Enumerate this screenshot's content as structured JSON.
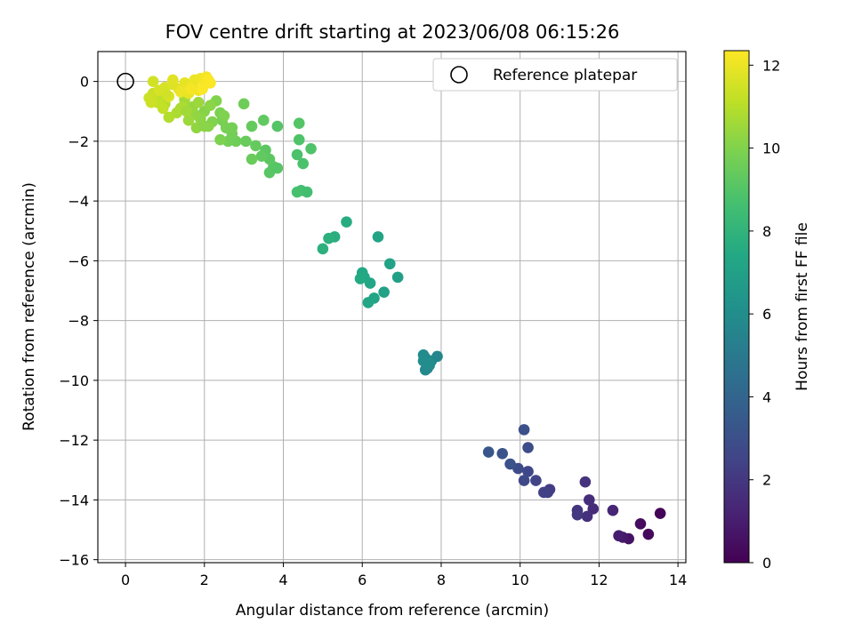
{
  "chart_data": {
    "type": "scatter",
    "title": "FOV centre drift starting at 2023/06/08 06:15:26",
    "xlabel": "Angular distance from reference (arcmin)",
    "ylabel": "Rotation from reference (arcmin)",
    "xlim": [
      -0.7,
      14.2
    ],
    "ylim": [
      -16.1,
      1.0
    ],
    "xticks": [
      0,
      2,
      4,
      6,
      8,
      10,
      12,
      14
    ],
    "yticks": [
      0,
      -2,
      -4,
      -6,
      -8,
      -10,
      -12,
      -14,
      -16
    ],
    "xtick_labels": [
      "0",
      "2",
      "4",
      "6",
      "8",
      "10",
      "12",
      "14"
    ],
    "ytick_labels": [
      "0",
      "−2",
      "−4",
      "−6",
      "−8",
      "−10",
      "−12",
      "−14",
      "−16"
    ],
    "grid": true,
    "legend": {
      "placement": "top-right",
      "entries": [
        "Reference platepar"
      ]
    },
    "reference_point": {
      "x": 0,
      "y": 0
    },
    "colorbar": {
      "label": "Hours from first FF file",
      "range": [
        0,
        12.35
      ],
      "ticks": [
        0,
        2,
        4,
        6,
        8,
        10,
        12
      ],
      "tick_labels": [
        "0",
        "2",
        "4",
        "6",
        "8",
        "10",
        "12"
      ],
      "colormap": "viridis"
    },
    "points": [
      [
        13.55,
        -14.45,
        0.1
      ],
      [
        13.25,
        -15.15,
        0.3
      ],
      [
        13.05,
        -14.8,
        0.4
      ],
      [
        12.75,
        -15.3,
        0.6
      ],
      [
        12.6,
        -15.25,
        0.8
      ],
      [
        12.5,
        -15.2,
        1.0
      ],
      [
        12.35,
        -14.35,
        1.3
      ],
      [
        11.85,
        -14.3,
        1.5
      ],
      [
        11.75,
        -14.0,
        1.6
      ],
      [
        11.7,
        -14.55,
        1.7
      ],
      [
        11.65,
        -13.4,
        1.8
      ],
      [
        11.45,
        -14.35,
        1.9
      ],
      [
        11.45,
        -14.5,
        2.0
      ],
      [
        10.75,
        -13.65,
        2.2
      ],
      [
        10.7,
        -13.75,
        2.3
      ],
      [
        10.6,
        -13.75,
        2.4
      ],
      [
        10.4,
        -13.35,
        2.5
      ],
      [
        10.2,
        -13.05,
        2.6
      ],
      [
        10.1,
        -13.35,
        2.7
      ],
      [
        9.95,
        -12.95,
        2.8
      ],
      [
        10.2,
        -12.25,
        2.9
      ],
      [
        10.1,
        -11.65,
        3.0
      ],
      [
        9.75,
        -12.8,
        3.1
      ],
      [
        9.55,
        -12.45,
        3.2
      ],
      [
        9.2,
        -12.4,
        3.3
      ],
      [
        7.9,
        -9.2,
        5.6
      ],
      [
        7.75,
        -9.35,
        5.7
      ],
      [
        7.7,
        -9.5,
        5.7
      ],
      [
        7.65,
        -9.6,
        5.8
      ],
      [
        7.6,
        -9.65,
        5.8
      ],
      [
        7.55,
        -9.15,
        5.9
      ],
      [
        7.6,
        -9.25,
        5.9
      ],
      [
        7.55,
        -9.35,
        6.0
      ],
      [
        7.7,
        -9.45,
        6.0
      ],
      [
        6.9,
        -6.55,
        7.0
      ],
      [
        6.7,
        -6.1,
        7.1
      ],
      [
        6.55,
        -7.05,
        7.1
      ],
      [
        6.4,
        -5.2,
        7.2
      ],
      [
        6.3,
        -7.25,
        7.2
      ],
      [
        6.2,
        -6.75,
        7.3
      ],
      [
        6.15,
        -7.4,
        7.3
      ],
      [
        6.05,
        -6.55,
        7.4
      ],
      [
        6.0,
        -6.4,
        7.4
      ],
      [
        5.95,
        -6.6,
        7.5
      ],
      [
        5.6,
        -4.7,
        7.6
      ],
      [
        5.3,
        -5.2,
        7.7
      ],
      [
        5.15,
        -5.25,
        7.8
      ],
      [
        5.0,
        -5.6,
        7.8
      ],
      [
        4.6,
        -3.7,
        8.6
      ],
      [
        4.45,
        -3.65,
        8.6
      ],
      [
        4.35,
        -3.7,
        8.7
      ],
      [
        4.35,
        -2.45,
        8.8
      ],
      [
        4.5,
        -2.75,
        8.8
      ],
      [
        4.7,
        -2.25,
        8.9
      ],
      [
        4.4,
        -1.95,
        8.9
      ],
      [
        4.4,
        -1.4,
        9.0
      ],
      [
        3.85,
        -1.5,
        9.0
      ],
      [
        3.75,
        -2.85,
        9.1
      ],
      [
        3.65,
        -3.05,
        9.1
      ],
      [
        3.65,
        -2.6,
        9.2
      ],
      [
        3.55,
        -2.3,
        9.2
      ],
      [
        3.45,
        -2.5,
        9.3
      ],
      [
        3.5,
        -1.3,
        9.3
      ],
      [
        3.3,
        -2.15,
        9.4
      ],
      [
        3.2,
        -1.5,
        9.4
      ],
      [
        3.2,
        -2.6,
        9.5
      ],
      [
        3.05,
        -2.0,
        9.5
      ],
      [
        3.0,
        -0.75,
        9.6
      ],
      [
        2.8,
        -2.0,
        9.6
      ],
      [
        2.7,
        -1.75,
        9.7
      ],
      [
        2.6,
        -2.0,
        9.7
      ],
      [
        2.55,
        -1.55,
        9.8
      ],
      [
        2.45,
        -1.3,
        9.8
      ],
      [
        2.4,
        -1.05,
        9.9
      ],
      [
        2.4,
        -1.95,
        9.9
      ],
      [
        2.3,
        -0.65,
        10.0
      ],
      [
        2.2,
        -1.35,
        10.0
      ],
      [
        2.1,
        -1.5,
        10.1
      ],
      [
        2.0,
        -1.0,
        10.1
      ],
      [
        1.9,
        -1.25,
        10.2
      ],
      [
        1.8,
        -1.55,
        10.3
      ],
      [
        1.75,
        -1.1,
        10.3
      ],
      [
        1.7,
        -0.85,
        10.4
      ],
      [
        1.6,
        -1.3,
        10.5
      ],
      [
        1.5,
        -0.6,
        10.6
      ],
      [
        1.4,
        -0.9,
        10.7
      ],
      [
        1.3,
        -1.05,
        10.8
      ],
      [
        1.1,
        -1.2,
        10.9
      ],
      [
        1.0,
        -0.75,
        11.0
      ],
      [
        0.9,
        -0.6,
        11.1
      ],
      [
        0.8,
        -0.7,
        11.2
      ],
      [
        0.7,
        -0.4,
        11.3
      ],
      [
        0.6,
        -0.55,
        11.4
      ],
      [
        0.65,
        -0.7,
        11.4
      ],
      [
        0.7,
        0.0,
        11.5
      ],
      [
        0.85,
        -0.3,
        11.6
      ],
      [
        1.0,
        -0.2,
        11.6
      ],
      [
        1.1,
        -0.5,
        11.7
      ],
      [
        1.2,
        -0.1,
        11.7
      ],
      [
        1.2,
        0.05,
        11.8
      ],
      [
        1.35,
        -0.25,
        11.8
      ],
      [
        1.5,
        -0.05,
        11.9
      ],
      [
        1.6,
        -0.4,
        11.9
      ],
      [
        1.7,
        -0.15,
        12.0
      ],
      [
        1.75,
        0.05,
        12.0
      ],
      [
        1.85,
        -0.3,
        12.1
      ],
      [
        1.9,
        0.1,
        12.1
      ],
      [
        2.0,
        -0.1,
        12.2
      ],
      [
        2.05,
        0.15,
        12.2
      ],
      [
        2.1,
        0.05,
        12.3
      ],
      [
        2.15,
        -0.05,
        12.3
      ],
      [
        1.95,
        -0.25,
        12.3
      ],
      [
        1.65,
        -0.25,
        12.2
      ],
      [
        1.4,
        -0.35,
        12.0
      ],
      [
        1.05,
        -0.45,
        11.5
      ],
      [
        0.95,
        -0.9,
        11.2
      ],
      [
        1.45,
        -0.85,
        10.8
      ],
      [
        1.85,
        -0.7,
        10.5
      ],
      [
        2.15,
        -0.8,
        10.2
      ],
      [
        2.5,
        -1.15,
        9.95
      ],
      [
        2.7,
        -1.55,
        9.75
      ],
      [
        1.55,
        -1.0,
        10.6
      ],
      [
        2.0,
        -1.5,
        10.15
      ],
      [
        3.85,
        -2.9,
        9.05
      ]
    ]
  }
}
